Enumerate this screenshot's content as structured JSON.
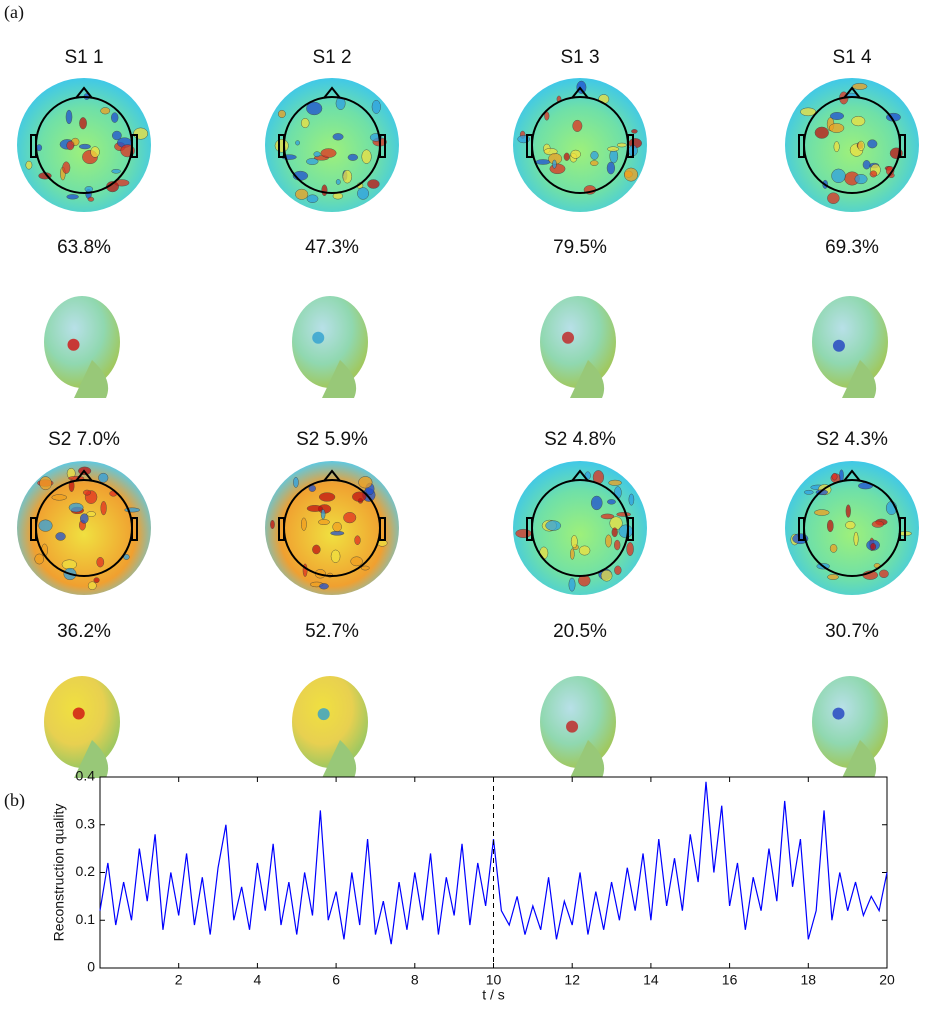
{
  "labels": {
    "a": "(a)",
    "b": "(b)"
  },
  "panel_a": {
    "rows": [
      {
        "titles": [
          "S1 1",
          "S1 2",
          "S1 3",
          "S1 4"
        ],
        "percentages": [
          "63.8%",
          "47.3%",
          "79.5%",
          "69.3%"
        ]
      },
      {
        "titles": [
          "S2 7.0%",
          "S2 5.9%",
          "S2 4.8%",
          "S2 4.3%"
        ],
        "percentages": [
          "36.2%",
          "52.7%",
          "20.5%",
          "30.7%"
        ]
      }
    ]
  },
  "chart_data": {
    "type": "line",
    "x_label": "t / s",
    "y_label": "Reconstruction quality",
    "xlim": [
      0,
      20
    ],
    "ylim": [
      0,
      0.4
    ],
    "xticks": [
      2,
      4,
      6,
      8,
      10,
      12,
      14,
      16,
      18,
      20
    ],
    "yticks": [
      0,
      0.1,
      0.2,
      0.3,
      0.4
    ],
    "vline": 10,
    "x": [
      0,
      0.2,
      0.4,
      0.6,
      0.8,
      1,
      1.2,
      1.4,
      1.6,
      1.8,
      2,
      2.2,
      2.4,
      2.6,
      2.8,
      3,
      3.2,
      3.4,
      3.6,
      3.8,
      4,
      4.2,
      4.4,
      4.6,
      4.8,
      5,
      5.2,
      5.4,
      5.6,
      5.8,
      6,
      6.2,
      6.4,
      6.6,
      6.8,
      7,
      7.2,
      7.4,
      7.6,
      7.8,
      8,
      8.2,
      8.4,
      8.6,
      8.8,
      9,
      9.2,
      9.4,
      9.6,
      9.8,
      10,
      10.2,
      10.4,
      10.6,
      10.8,
      11,
      11.2,
      11.4,
      11.6,
      11.8,
      12,
      12.2,
      12.4,
      12.6,
      12.8,
      13,
      13.2,
      13.4,
      13.6,
      13.8,
      14,
      14.2,
      14.4,
      14.6,
      14.8,
      15,
      15.2,
      15.4,
      15.6,
      15.8,
      16,
      16.2,
      16.4,
      16.6,
      16.8,
      17,
      17.2,
      17.4,
      17.6,
      17.8,
      18,
      18.2,
      18.4,
      18.6,
      18.8,
      19,
      19.2,
      19.4,
      19.6,
      19.8,
      20
    ],
    "series": [
      {
        "color": "#0000ff",
        "values": [
          0.12,
          0.22,
          0.09,
          0.18,
          0.1,
          0.25,
          0.14,
          0.28,
          0.08,
          0.2,
          0.11,
          0.24,
          0.09,
          0.19,
          0.07,
          0.21,
          0.3,
          0.1,
          0.17,
          0.08,
          0.22,
          0.12,
          0.26,
          0.09,
          0.18,
          0.07,
          0.2,
          0.11,
          0.33,
          0.1,
          0.16,
          0.06,
          0.2,
          0.09,
          0.27,
          0.07,
          0.14,
          0.05,
          0.18,
          0.08,
          0.2,
          0.1,
          0.24,
          0.07,
          0.19,
          0.11,
          0.26,
          0.09,
          0.22,
          0.13,
          0.27,
          0.12,
          0.09,
          0.15,
          0.07,
          0.13,
          0.08,
          0.19,
          0.06,
          0.14,
          0.09,
          0.2,
          0.07,
          0.16,
          0.08,
          0.18,
          0.1,
          0.21,
          0.12,
          0.24,
          0.1,
          0.27,
          0.13,
          0.23,
          0.12,
          0.28,
          0.18,
          0.39,
          0.2,
          0.34,
          0.13,
          0.22,
          0.08,
          0.19,
          0.12,
          0.25,
          0.14,
          0.35,
          0.17,
          0.27,
          0.06,
          0.12,
          0.33,
          0.1,
          0.2,
          0.12,
          0.18,
          0.11,
          0.15,
          0.12,
          0.2
        ]
      }
    ]
  }
}
